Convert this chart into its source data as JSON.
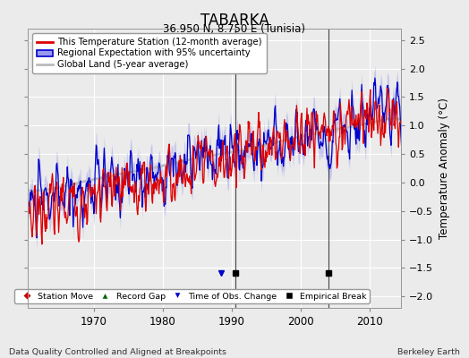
{
  "title": "TABARKA",
  "subtitle": "36.950 N, 8.750 E (Tunisia)",
  "ylabel": "Temperature Anomaly (°C)",
  "xlabel_left": "Data Quality Controlled and Aligned at Breakpoints",
  "xlabel_right": "Berkeley Earth",
  "ylim": [
    -2.2,
    2.7
  ],
  "xlim": [
    1960.5,
    2014.5
  ],
  "xticks": [
    1970,
    1980,
    1990,
    2000,
    2010
  ],
  "yticks": [
    -2,
    -1.5,
    -1,
    -0.5,
    0,
    0.5,
    1,
    1.5,
    2,
    2.5
  ],
  "empirical_breaks": [
    1990.5,
    2004.0
  ],
  "time_obs_changes": [
    1988.5
  ],
  "bg_color": "#ebebeb",
  "station_line_color": "#dd0000",
  "regional_line_color": "#0000cc",
  "regional_fill_color": "#9999ee",
  "global_land_color": "#bbbbbb",
  "legend_entries": [
    "This Temperature Station (12-month average)",
    "Regional Expectation with 95% uncertainty",
    "Global Land (5-year average)"
  ]
}
